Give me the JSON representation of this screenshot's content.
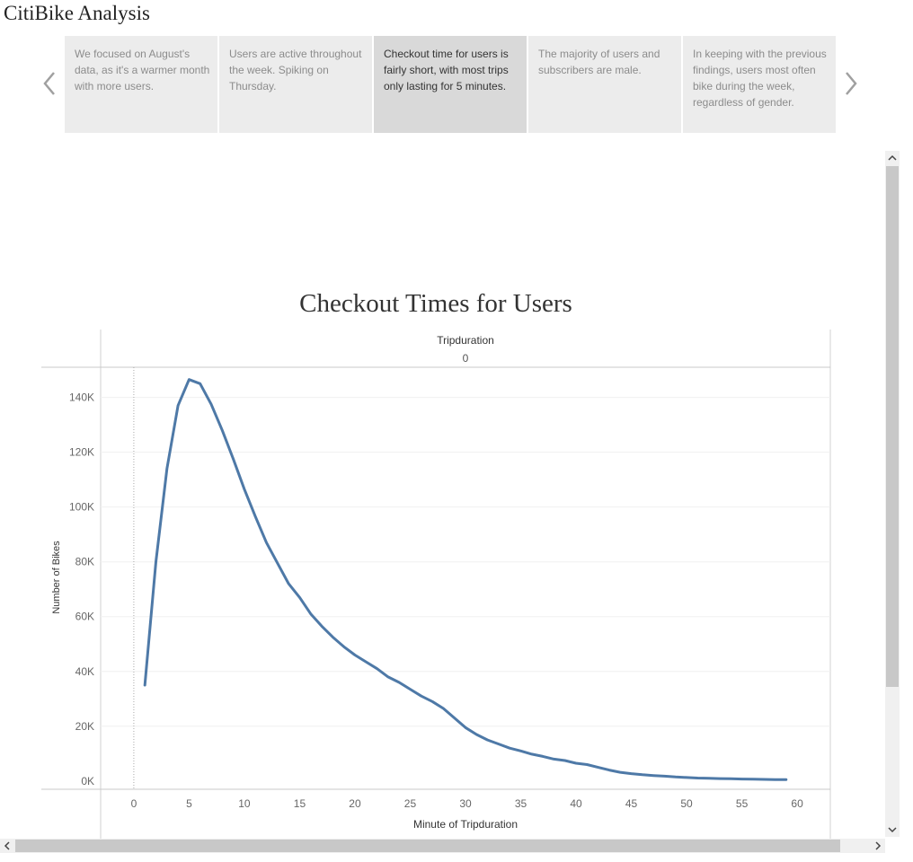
{
  "app": {
    "title": "CitiBike Analysis"
  },
  "story": {
    "prev_icon": "chevron-left-icon",
    "next_icon": "chevron-right-icon",
    "active_index": 2,
    "points": [
      {
        "text": "We focused on August's data, as it's a warmer month with more users."
      },
      {
        "text": "Users are active throughout the week. Spiking on Thursday."
      },
      {
        "text": "Checkout time for users is fairly short, with most trips only lasting for 5 minutes."
      },
      {
        "text": "The majority of users and subscribers are male."
      },
      {
        "text": "In keeping with the previous findings, users most often bike during the week, regardless of gender."
      }
    ]
  },
  "chart_data": {
    "type": "line",
    "title": "Checkout Times for Users",
    "column_header_title": "Tripduration",
    "column_header_value": "0",
    "xlabel": "Minute of Tripduration",
    "ylabel": "Number of Bikes",
    "xlim": [
      -3,
      63
    ],
    "ylim": [
      -3000,
      151000
    ],
    "x_ticks": [
      0,
      5,
      10,
      15,
      20,
      25,
      30,
      35,
      40,
      45,
      50,
      55,
      60
    ],
    "y_ticks": [
      {
        "value": 0,
        "label": "0K"
      },
      {
        "value": 20000,
        "label": "20K"
      },
      {
        "value": 40000,
        "label": "40K"
      },
      {
        "value": 60000,
        "label": "60K"
      },
      {
        "value": 80000,
        "label": "80K"
      },
      {
        "value": 100000,
        "label": "100K"
      },
      {
        "value": 120000,
        "label": "120K"
      },
      {
        "value": 140000,
        "label": "140K"
      }
    ],
    "grid": true,
    "line_color": "#4e79a7",
    "series": [
      {
        "x": [
          1,
          2,
          3,
          4,
          5,
          6,
          7,
          8,
          9,
          10,
          11,
          12,
          13,
          14,
          15,
          16,
          17,
          18,
          19,
          20,
          21,
          22,
          23,
          24,
          25,
          26,
          27,
          28,
          29,
          30,
          31,
          32,
          33,
          34,
          35,
          36,
          37,
          38,
          39,
          40,
          41,
          42,
          43,
          44,
          45,
          46,
          47,
          48,
          49,
          50,
          51,
          52,
          53,
          54,
          55,
          56,
          57,
          58,
          59
        ],
        "values": [
          35000,
          80000,
          114000,
          137000,
          146500,
          145000,
          137500,
          128000,
          117500,
          106500,
          96500,
          87000,
          79500,
          72000,
          67000,
          61000,
          56500,
          52500,
          49000,
          46000,
          43500,
          41000,
          38000,
          36000,
          33500,
          31000,
          29000,
          26500,
          23000,
          19500,
          17000,
          15000,
          13500,
          12000,
          11000,
          9800,
          9000,
          8000,
          7500,
          6500,
          6000,
          5000,
          4000,
          3200,
          2700,
          2300,
          2000,
          1800,
          1500,
          1300,
          1100,
          1000,
          900,
          850,
          750,
          700,
          600,
          550,
          500
        ]
      }
    ]
  }
}
